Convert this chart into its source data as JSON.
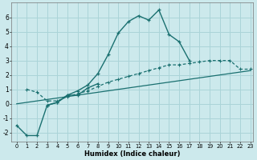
{
  "xlabel": "Humidex (Indice chaleur)",
  "background_color": "#cce9ec",
  "grid_color": "#aad4d8",
  "line_color": "#1a7070",
  "x_min": -0.5,
  "x_max": 23.3,
  "y_min": -2.6,
  "y_max": 7.0,
  "curve_main_x": [
    3,
    4,
    5,
    6,
    7,
    8,
    9,
    10,
    11,
    12,
    13,
    14,
    15,
    16,
    17
  ],
  "curve_main_y": [
    -0.1,
    0.1,
    0.6,
    0.9,
    1.3,
    2.1,
    3.4,
    4.9,
    5.7,
    6.1,
    5.8,
    6.5,
    4.8,
    4.3,
    3.0
  ],
  "curve_left_x": [
    0,
    1,
    2,
    3,
    4,
    5,
    6,
    7,
    8
  ],
  "curve_left_y": [
    -1.5,
    -2.2,
    -2.2,
    -0.1,
    0.1,
    0.6,
    0.6,
    1.1,
    1.4
  ],
  "curve_dotted_x": [
    1,
    2,
    3,
    4,
    5,
    6,
    7,
    8,
    9,
    10,
    11,
    12,
    13,
    14,
    15,
    16,
    17,
    18,
    19,
    20,
    21,
    22,
    23
  ],
  "curve_dotted_y": [
    1.0,
    0.8,
    0.2,
    0.2,
    0.5,
    0.7,
    0.9,
    1.2,
    1.5,
    1.7,
    1.9,
    2.1,
    2.3,
    2.5,
    2.7,
    2.7,
    2.8,
    2.9,
    3.0,
    3.0,
    3.0,
    2.4,
    2.4
  ],
  "line_x": [
    0,
    23
  ],
  "line_y": [
    0.0,
    2.3
  ],
  "xticks": [
    0,
    1,
    2,
    3,
    4,
    5,
    6,
    7,
    8,
    9,
    10,
    11,
    12,
    13,
    14,
    15,
    16,
    17,
    18,
    19,
    20,
    21,
    22,
    23
  ],
  "yticks": [
    -2,
    -1,
    0,
    1,
    2,
    3,
    4,
    5,
    6
  ]
}
